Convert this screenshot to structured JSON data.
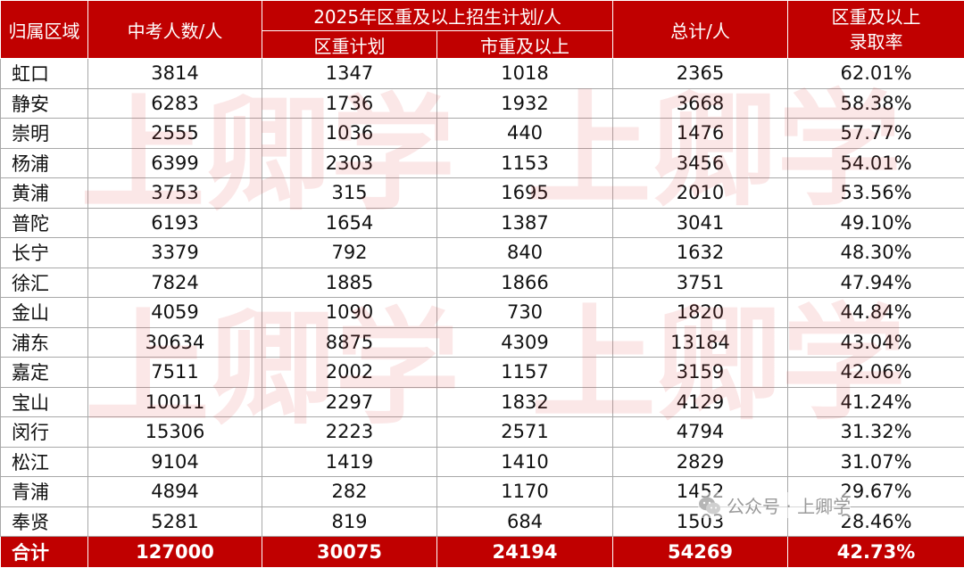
{
  "watermark": {
    "text_1": "上卿学",
    "text_2": "上卿学",
    "text_3": "上卿学",
    "text_4": "上卿学"
  },
  "table": {
    "headers": {
      "region": "归属区域",
      "exam_count": "中考人数/人",
      "plan_group": "2025年区重及以上招生计划/人",
      "district_plan": "区重计划",
      "city_plan": "市重及以上",
      "total": "总计/人",
      "rate": "区重及以上录取率"
    },
    "rows": [
      [
        "虹口",
        "3814",
        "1347",
        "1018",
        "2365",
        "62.01%"
      ],
      [
        "静安",
        "6283",
        "1736",
        "1932",
        "3668",
        "58.38%"
      ],
      [
        "崇明",
        "2555",
        "1036",
        "440",
        "1476",
        "57.77%"
      ],
      [
        "杨浦",
        "6399",
        "2303",
        "1153",
        "3456",
        "54.01%"
      ],
      [
        "黄浦",
        "3753",
        "315",
        "1695",
        "2010",
        "53.56%"
      ],
      [
        "普陀",
        "6193",
        "1654",
        "1387",
        "3041",
        "49.10%"
      ],
      [
        "长宁",
        "3379",
        "792",
        "840",
        "1632",
        "48.30%"
      ],
      [
        "徐汇",
        "7824",
        "1885",
        "1866",
        "3751",
        "47.94%"
      ],
      [
        "金山",
        "4059",
        "1090",
        "730",
        "1820",
        "44.84%"
      ],
      [
        "浦东",
        "30634",
        "8875",
        "4309",
        "13184",
        "43.04%"
      ],
      [
        "嘉定",
        "7511",
        "2002",
        "1157",
        "3159",
        "42.06%"
      ],
      [
        "宝山",
        "10011",
        "2297",
        "1832",
        "4129",
        "41.24%"
      ],
      [
        "闵行",
        "15306",
        "2223",
        "2571",
        "4794",
        "31.32%"
      ],
      [
        "松江",
        "9104",
        "1419",
        "1410",
        "2829",
        "31.07%"
      ],
      [
        "青浦",
        "4894",
        "282",
        "1170",
        "1452",
        "29.67%"
      ],
      [
        "奉贤",
        "5281",
        "819",
        "684",
        "1503",
        "28.46%"
      ]
    ],
    "total_row": [
      "合计",
      "127000",
      "30075",
      "24194",
      "54269",
      "42.73%"
    ]
  },
  "badge": {
    "icon": "wechat-icon",
    "text": "公众号 · 上卿学"
  },
  "colors": {
    "header_bg": "#c00000",
    "header_text": "#ffffff",
    "watermark": "#e14646"
  }
}
